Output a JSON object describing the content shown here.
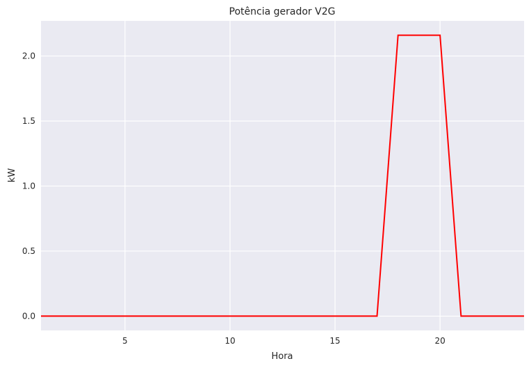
{
  "chart_data": {
    "type": "line",
    "title": "Potência gerador V2G",
    "xlabel": "Hora",
    "ylabel": "kW",
    "xlim": [
      1,
      24
    ],
    "ylim": [
      -0.11,
      2.27
    ],
    "xticks": [
      5,
      10,
      15,
      20
    ],
    "xtick_labels": [
      "5",
      "10",
      "15",
      "20"
    ],
    "yticks": [
      0.0,
      0.5,
      1.0,
      1.5,
      2.0
    ],
    "ytick_labels": [
      "0.0",
      "0.5",
      "1.0",
      "1.5",
      "2.0"
    ],
    "grid": true,
    "series": [
      {
        "color": "#ff0000",
        "x": [
          1,
          2,
          3,
          4,
          5,
          6,
          7,
          8,
          9,
          10,
          11,
          12,
          13,
          14,
          15,
          16,
          17,
          18,
          19,
          20,
          21,
          22,
          23,
          24
        ],
        "values": [
          0,
          0,
          0,
          0,
          0,
          0,
          0,
          0,
          0,
          0,
          0,
          0,
          0,
          0,
          0,
          0,
          0,
          2.16,
          2.16,
          2.16,
          0,
          0,
          0,
          0
        ]
      }
    ],
    "colors": {
      "background": "#eaeaf2",
      "grid": "#ffffff",
      "line": "#ff0000"
    }
  }
}
